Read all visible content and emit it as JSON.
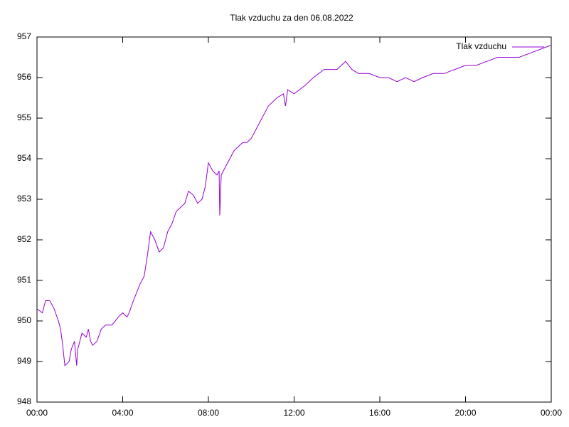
{
  "chart_data": {
    "type": "line",
    "title": "Tlak vzduchu za den 06.08.2022",
    "x": [
      0,
      0.25,
      0.4,
      0.6,
      0.8,
      1.0,
      1.1,
      1.2,
      1.3,
      1.5,
      1.6,
      1.75,
      1.85,
      1.9,
      2.1,
      2.3,
      2.4,
      2.5,
      2.6,
      2.8,
      3.0,
      3.2,
      3.5,
      3.8,
      4.0,
      4.2,
      4.3,
      4.5,
      4.8,
      5.0,
      5.15,
      5.3,
      5.5,
      5.7,
      5.9,
      6.1,
      6.3,
      6.5,
      6.7,
      6.9,
      7.07,
      7.3,
      7.5,
      7.7,
      7.85,
      8.0,
      8.2,
      8.4,
      8.5,
      8.53,
      8.6,
      8.8,
      9.0,
      9.2,
      9.4,
      9.6,
      9.8,
      10.0,
      10.3,
      10.6,
      10.8,
      11.0,
      11.2,
      11.5,
      11.6,
      11.7,
      12.0,
      12.5,
      12.9,
      13.4,
      13.8,
      14.0,
      14.4,
      14.7,
      15.0,
      15.5,
      16.0,
      16.4,
      16.8,
      17.2,
      17.6,
      18.0,
      18.5,
      19.0,
      19.5,
      20.0,
      20.5,
      21.0,
      21.5,
      22.0,
      22.5,
      23.0,
      23.5,
      24.0
    ],
    "series": [
      {
        "name": "Tlak vzduchu",
        "color": "#9400d3",
        "values": [
          950.3,
          950.2,
          950.5,
          950.5,
          950.3,
          950.0,
          949.8,
          949.4,
          948.9,
          949.0,
          949.3,
          949.5,
          948.9,
          949.3,
          949.7,
          949.6,
          949.8,
          949.5,
          949.4,
          949.5,
          949.8,
          949.9,
          949.9,
          950.1,
          950.2,
          950.1,
          950.2,
          950.5,
          950.9,
          951.1,
          951.6,
          952.2,
          952.0,
          951.7,
          951.8,
          952.2,
          952.4,
          952.7,
          952.8,
          952.9,
          953.2,
          953.1,
          952.9,
          953.0,
          953.3,
          953.9,
          953.7,
          953.6,
          953.7,
          952.6,
          953.6,
          953.8,
          954.0,
          954.2,
          954.3,
          954.4,
          954.4,
          954.5,
          954.8,
          955.1,
          955.3,
          955.4,
          955.5,
          955.6,
          955.3,
          955.7,
          955.6,
          955.8,
          956.0,
          956.2,
          956.2,
          956.2,
          956.4,
          956.2,
          956.1,
          956.1,
          956.0,
          956.0,
          955.9,
          956.0,
          955.9,
          956.0,
          956.1,
          956.1,
          956.2,
          956.3,
          956.3,
          956.4,
          956.5,
          956.5,
          956.5,
          956.6,
          956.7,
          956.8
        ]
      }
    ],
    "xlim": [
      0,
      24
    ],
    "xticks": [
      {
        "value": 0,
        "label": "00:00"
      },
      {
        "value": 4,
        "label": "04:00"
      },
      {
        "value": 8,
        "label": "08:00"
      },
      {
        "value": 12,
        "label": "12:00"
      },
      {
        "value": 16,
        "label": "16:00"
      },
      {
        "value": 20,
        "label": "20:00"
      },
      {
        "value": 24,
        "label": "00:00"
      }
    ],
    "ylim": [
      948,
      957
    ],
    "yticks": [
      948,
      949,
      950,
      951,
      952,
      953,
      954,
      955,
      956,
      957
    ],
    "grid": false,
    "legend": "top-right"
  }
}
